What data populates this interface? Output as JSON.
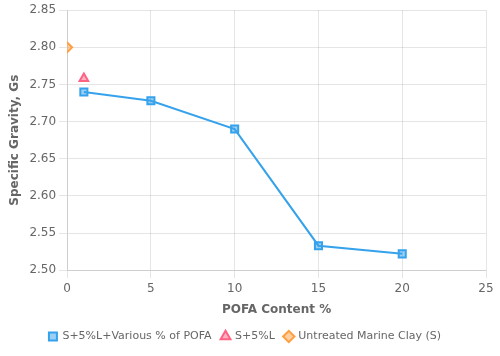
{
  "chart_data": {
    "type": "line",
    "x_label": "POFA Content %",
    "y_label": "Specific Gravity, Gs",
    "series": [
      {
        "name": "S+5%L+Various % of POFA",
        "type": "line",
        "marker": "square",
        "line_style": "solid",
        "x": [
          1,
          5,
          10,
          15,
          20
        ],
        "values": [
          2.74,
          2.728,
          2.69,
          2.533,
          2.522
        ]
      },
      {
        "name": "S+5%L",
        "type": "scatter",
        "marker": "triangle",
        "x": [
          1
        ],
        "values": [
          2.758
        ]
      },
      {
        "name": "Untreated Marine Clay (S)",
        "type": "scatter",
        "marker": "diamond",
        "x": [
          0
        ],
        "values": [
          2.8
        ]
      }
    ],
    "xlim": [
      0,
      25
    ],
    "ylim": [
      2.5,
      2.85
    ],
    "xticks": [
      0,
      5,
      10,
      15,
      20,
      25
    ],
    "yticks": [
      {
        "value": 2.5,
        "label": "2.50"
      },
      2.55,
      {
        "value": 2.6,
        "label": "2.60"
      },
      2.65,
      {
        "value": 2.7,
        "label": "2.70"
      },
      2.75,
      {
        "value": 2.8,
        "label": "2.80"
      },
      2.85
    ],
    "grid": true,
    "legend": "bottom"
  }
}
